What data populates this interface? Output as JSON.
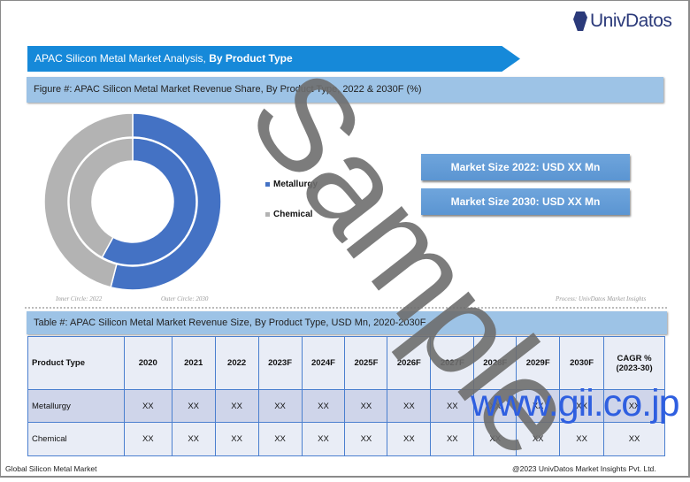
{
  "brand": {
    "name": "UnivDatos"
  },
  "banner": {
    "title_regular": "APAC Silicon Metal Market Analysis, ",
    "title_bold": "By Product Type"
  },
  "figure": {
    "title": "Figure #: APAC Silicon Metal Market Revenue Share, By Product Type, 2022 & 2030F (%)",
    "inner_note": "Inner Circle: 2022",
    "outer_note": "Outer Circle: 2030",
    "source": "Process: UnivDatos Market Insights"
  },
  "chart_data": {
    "type": "pie",
    "subtype": "double-donut",
    "categories": [
      "Metallurgy",
      "Chemical"
    ],
    "colors": [
      "#4472c4",
      "#b3b3b3"
    ],
    "series": [
      {
        "name": "Inner Circle: 2022",
        "values": [
          58,
          42
        ]
      },
      {
        "name": "Outer Circle: 2030",
        "values": [
          54,
          46
        ]
      }
    ],
    "legend": "right"
  },
  "market_size": [
    "Market Size 2022: USD XX Mn",
    "Market Size 2030: USD XX Mn"
  ],
  "table": {
    "title": "Table #: APAC Silicon Metal Market Revenue Size, By Product Type, USD Mn, 2020-2030F",
    "headers": [
      "Product Type",
      "2020",
      "2021",
      "2022",
      "2023F",
      "2024F",
      "2025F",
      "2026F",
      "2027F",
      "2028F",
      "2029F",
      "2030F",
      "CAGR % (2023-30)"
    ],
    "rows": [
      [
        "Metallurgy",
        "XX",
        "XX",
        "XX",
        "XX",
        "XX",
        "XX",
        "XX",
        "XX",
        "XX",
        "XX",
        "XX",
        "XX"
      ],
      [
        "Chemical",
        "XX",
        "XX",
        "XX",
        "XX",
        "XX",
        "XX",
        "XX",
        "XX",
        "XX",
        "XX",
        "XX",
        "XX"
      ]
    ]
  },
  "footer": {
    "left": "Global Silicon Metal Market",
    "right": "@2023 UnivDatos Market Insights Pvt. Ltd."
  },
  "watermarks": {
    "sample": "Sample",
    "site": "www.gii.co.jp"
  }
}
